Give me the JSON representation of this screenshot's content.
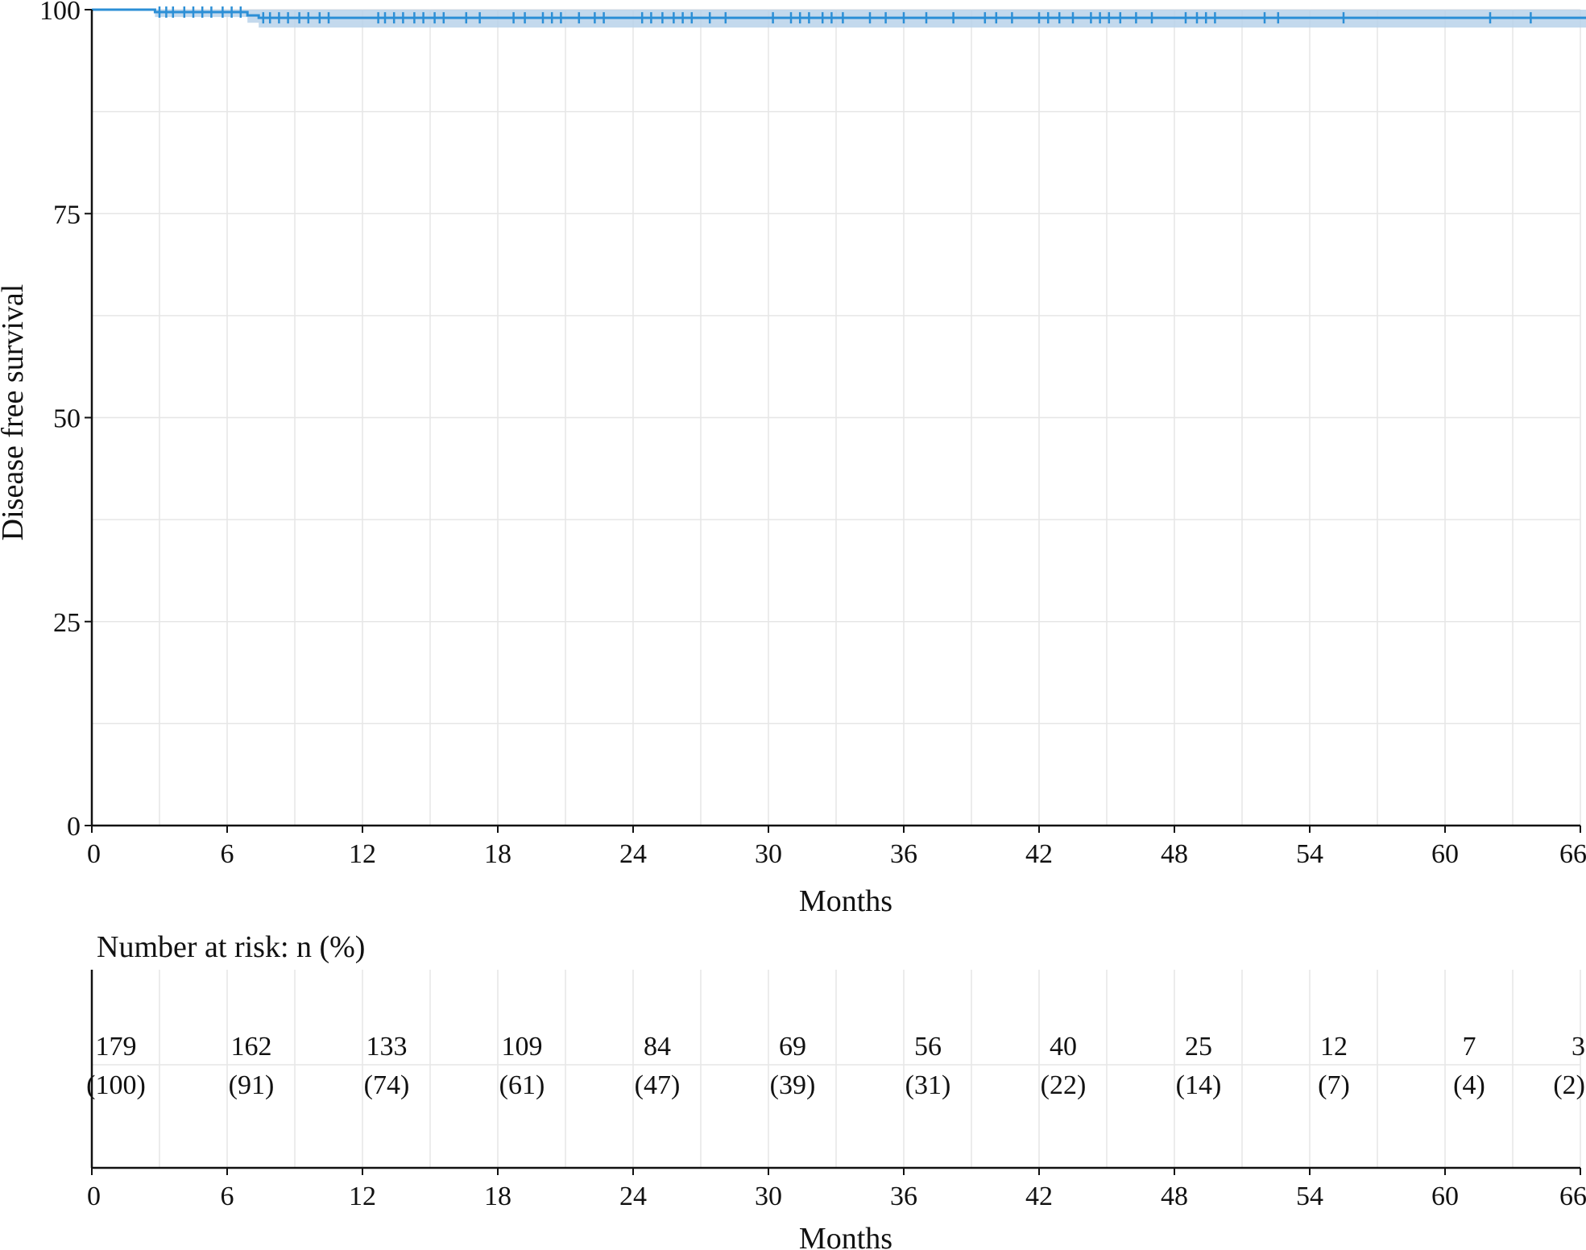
{
  "chart_data": [
    {
      "type": "line",
      "subtype": "kaplan-meier",
      "title": "",
      "xlabel": "Months",
      "ylabel": "Disease free survival",
      "xlim": [
        0,
        66
      ],
      "ylim": [
        0,
        100
      ],
      "xticks": [
        0,
        6,
        12,
        18,
        24,
        30,
        36,
        42,
        48,
        54,
        60,
        66
      ],
      "yticks": [
        0,
        25,
        50,
        75,
        100
      ],
      "grid": true,
      "legend": "none",
      "colors": {
        "curve": "#2c8fd6",
        "ci_band": "#b9d2ea",
        "grid": "#e6e6e6",
        "axis": "#111111"
      },
      "series": [
        {
          "x": [
            0,
            2.8,
            2.8,
            6.9,
            6.9,
            7.4,
            7.4,
            66.5
          ],
          "y": [
            100,
            100,
            99.7,
            99.7,
            99.3,
            99.3,
            99.0,
            99.0
          ],
          "ci_lower": [
            100,
            100,
            99.1,
            99.1,
            98.4,
            98.4,
            97.8,
            97.8
          ],
          "ci_upper": [
            100,
            100,
            100,
            100,
            100,
            100,
            100,
            100
          ],
          "censor_times": [
            3.0,
            3.3,
            3.6,
            4.1,
            4.5,
            4.9,
            5.3,
            5.8,
            6.2,
            6.6,
            7.6,
            7.9,
            8.3,
            8.7,
            9.2,
            9.6,
            10.1,
            10.5,
            12.7,
            13.0,
            13.4,
            13.8,
            14.3,
            14.7,
            15.2,
            15.6,
            16.6,
            17.2,
            18.7,
            19.2,
            20.0,
            20.4,
            20.8,
            21.6,
            22.3,
            22.7,
            24.4,
            24.8,
            25.3,
            25.8,
            26.2,
            26.6,
            27.4,
            28.1,
            30.2,
            31.0,
            31.4,
            31.8,
            32.4,
            32.8,
            33.3,
            34.5,
            35.2,
            36.0,
            37.0,
            38.2,
            39.6,
            40.1,
            40.8,
            42.0,
            42.4,
            42.9,
            43.5,
            44.3,
            44.7,
            45.1,
            45.6,
            46.3,
            47.0,
            48.5,
            49.0,
            49.4,
            49.8,
            52.0,
            52.6,
            55.5,
            62.0,
            63.8
          ]
        }
      ]
    },
    {
      "type": "table",
      "title": "Number at risk: n (%)",
      "xlabel": "Months",
      "xlim": [
        0,
        66
      ],
      "xticks": [
        0,
        6,
        12,
        18,
        24,
        30,
        36,
        42,
        48,
        54,
        60,
        66
      ],
      "rows": [
        {
          "month": 0,
          "n": "179",
          "pct": "(100)"
        },
        {
          "month": 6,
          "n": "162",
          "pct": "(91)"
        },
        {
          "month": 12,
          "n": "133",
          "pct": "(74)"
        },
        {
          "month": 18,
          "n": "109",
          "pct": "(61)"
        },
        {
          "month": 24,
          "n": "84",
          "pct": "(47)"
        },
        {
          "month": 30,
          "n": "69",
          "pct": "(39)"
        },
        {
          "month": 36,
          "n": "56",
          "pct": "(31)"
        },
        {
          "month": 42,
          "n": "40",
          "pct": "(22)"
        },
        {
          "month": 48,
          "n": "25",
          "pct": "(14)"
        },
        {
          "month": 54,
          "n": "12",
          "pct": "(7)"
        },
        {
          "month": 60,
          "n": "7",
          "pct": "(4)"
        },
        {
          "month": 66,
          "n": "3",
          "pct": "(2)"
        }
      ]
    }
  ]
}
